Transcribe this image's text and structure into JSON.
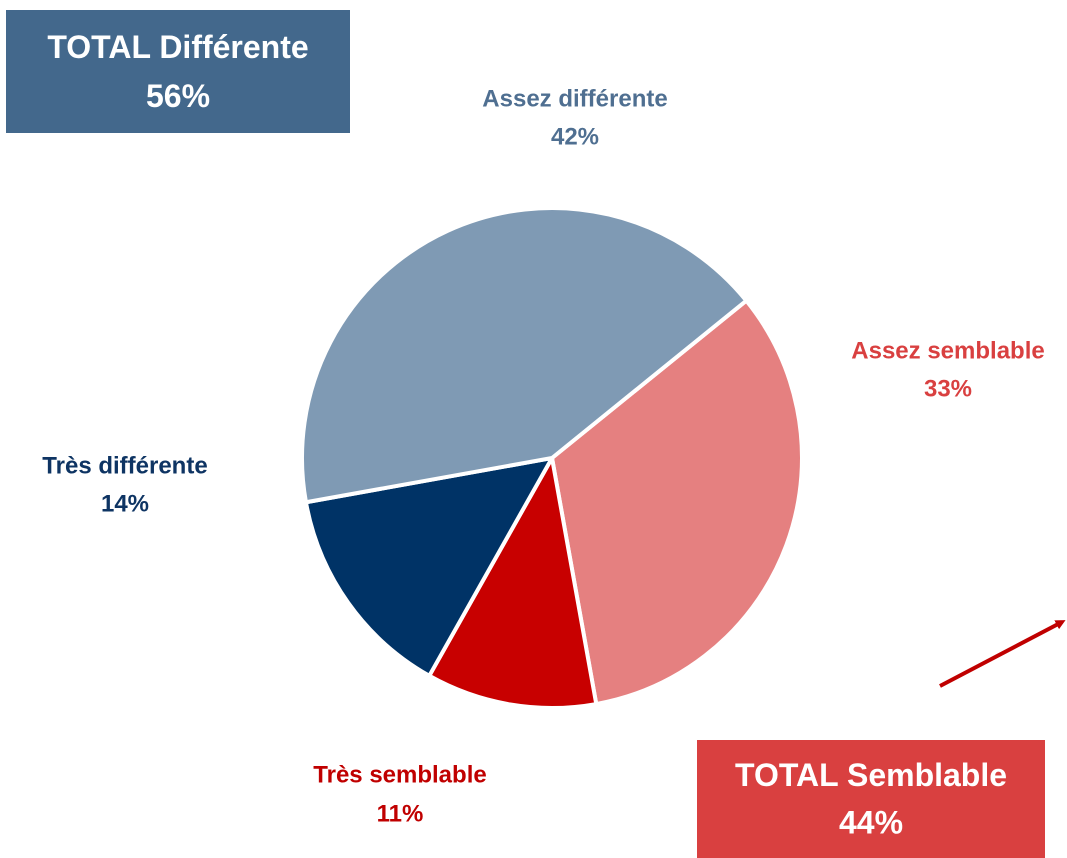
{
  "chart_data": {
    "type": "pie",
    "categories": [
      "Assez semblable",
      "Très semblable",
      "Très différente",
      "Assez différente"
    ],
    "values": [
      33,
      11,
      14,
      42
    ],
    "value_labels": [
      "33%",
      "11%",
      "14%",
      "42%"
    ],
    "colors": [
      "#e58080",
      "#c80000",
      "#003366",
      "#7f9ab4"
    ],
    "label_colors": [
      "#d94040",
      "#c00000",
      "#0e3463",
      "#4f6f91"
    ],
    "annotations": [
      {
        "text": "TOTAL Différente",
        "value": 56,
        "label": "56%",
        "color": "#43688c"
      },
      {
        "text": "TOTAL Semblable",
        "value": 44,
        "label": "44%",
        "color": "#d94040"
      }
    ]
  }
}
